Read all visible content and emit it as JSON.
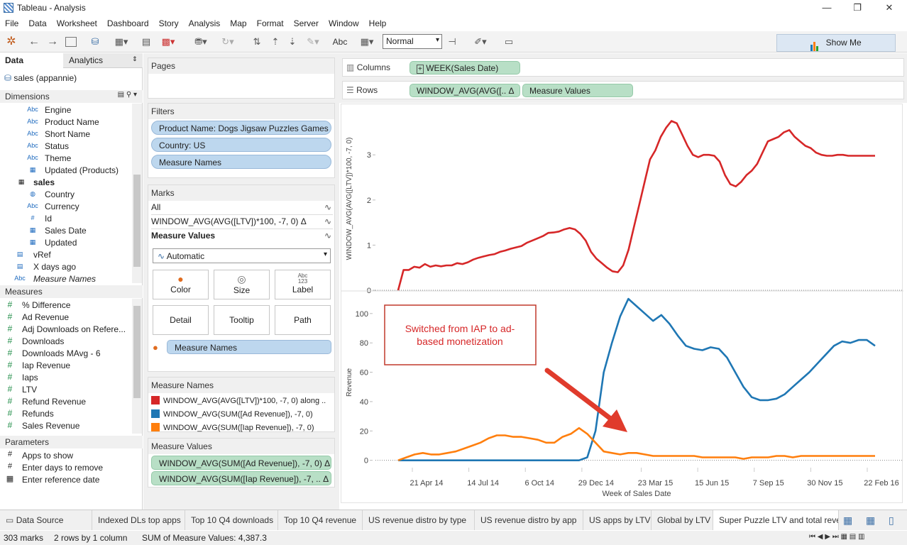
{
  "window": {
    "title": "Tableau - Analysis",
    "minimize": "—",
    "restore": "❐",
    "close": "✕"
  },
  "menu": [
    "File",
    "Data",
    "Worksheet",
    "Dashboard",
    "Story",
    "Analysis",
    "Map",
    "Format",
    "Server",
    "Window",
    "Help"
  ],
  "toolbar": {
    "view_size": "Normal",
    "abc_label": "Abc",
    "show_me": "Show Me"
  },
  "data_pane": {
    "tab_data": "Data",
    "tab_analytics": "Analytics",
    "datasource": "sales (appannie)",
    "dimensions_header": "Dimensions",
    "dimensions": [
      {
        "icon": "Abc",
        "label": "Engine",
        "indent": 1
      },
      {
        "icon": "Abc",
        "label": "Product Name",
        "indent": 1
      },
      {
        "icon": "Abc",
        "label": "Short Name",
        "indent": 1
      },
      {
        "icon": "Abc",
        "label": "Status",
        "indent": 1
      },
      {
        "icon": "Abc",
        "label": "Theme",
        "indent": 1
      },
      {
        "icon": "cal",
        "label": "Updated (Products)",
        "indent": 1
      },
      {
        "icon": "tbl",
        "label": "sales",
        "indent": 0
      },
      {
        "icon": "globe",
        "label": "Country",
        "indent": 1
      },
      {
        "icon": "Abc",
        "label": "Currency",
        "indent": 1
      },
      {
        "icon": "#",
        "label": "Id",
        "indent": 1
      },
      {
        "icon": "cal",
        "label": "Sales Date",
        "indent": 1
      },
      {
        "icon": "cal",
        "label": "Updated",
        "indent": 1
      },
      {
        "icon": "calc",
        "label": "vRef",
        "indent": 0
      },
      {
        "icon": "calc",
        "label": "X days ago",
        "indent": 0
      },
      {
        "icon": "Abc",
        "label": "Measure Names",
        "indent": 0
      }
    ],
    "measures_header": "Measures",
    "measures": [
      "% Difference",
      "Ad Revenue",
      "Adj Downloads on Refere...",
      "Downloads",
      "Downloads MAvg - 6",
      "Iap Revenue",
      "Iaps",
      "LTV",
      "Refund Revenue",
      "Refunds",
      "Sales Revenue"
    ],
    "parameters_header": "Parameters",
    "parameters": [
      {
        "icon": "#",
        "label": "Apps to show"
      },
      {
        "icon": "#",
        "label": "Enter days to remove"
      },
      {
        "icon": "cal",
        "label": "Enter reference date"
      }
    ]
  },
  "cards": {
    "pages_header": "Pages",
    "filters_header": "Filters",
    "filters": [
      "Product Name: Dogs Jigsaw Puzzles Games ..",
      "Country: US",
      "Measure Names"
    ],
    "marks_header": "Marks",
    "marks_rows": [
      "All",
      "WINDOW_AVG(AVG([LTV])*100, -7, 0) Δ",
      "Measure Values"
    ],
    "mark_type": "Automatic",
    "mark_buttons": [
      "Color",
      "Size",
      "Label",
      "Detail",
      "Tooltip",
      "Path"
    ],
    "label_icon_text": "Abc\n123",
    "color_pill": "Measure Names",
    "legend_header": "Measure Names",
    "legend": [
      {
        "label": "WINDOW_AVG(AVG([LTV])*100, -7, 0) along ..",
        "color": "#d62728"
      },
      {
        "label": "WINDOW_AVG(SUM([Ad Revenue]), -7, 0)",
        "color": "#1f77b4"
      },
      {
        "label": "WINDOW_AVG(SUM([Iap Revenue]), -7, 0)",
        "color": "#ff7f0e"
      }
    ],
    "mv_header": "Measure Values",
    "mv_pills": [
      "WINDOW_AVG(SUM([Ad Revenue]), -7, 0) Δ",
      "WINDOW_AVG(SUM([Iap Revenue]), -7, .. Δ"
    ]
  },
  "shelves": {
    "columns_label": "Columns",
    "rows_label": "Rows",
    "columns_pill": "WEEK(Sales Date)",
    "rows_pills": [
      "WINDOW_AVG(AVG([.. Δ",
      "Measure Values"
    ]
  },
  "chart_data": [
    {
      "type": "line",
      "ylabel": "WINDOW_AVG(AVG([LTV])*100, -7, 0)",
      "ylim": [
        0,
        3.9
      ],
      "yticks": [
        0,
        1,
        2,
        3
      ],
      "series": [
        {
          "color": "#d62728",
          "x": [
            0,
            2,
            4,
            6,
            8,
            10,
            12,
            14,
            16,
            18,
            20,
            22,
            24,
            26,
            28,
            30,
            32,
            34,
            36,
            38,
            40,
            42,
            44,
            46,
            48,
            50,
            52,
            54,
            56,
            58,
            60,
            62,
            64,
            66,
            68,
            70,
            72,
            74,
            76,
            78,
            80,
            82,
            84,
            86,
            88,
            90,
            92,
            94,
            96,
            98,
            100,
            102,
            104,
            106,
            108,
            110,
            112,
            114,
            116,
            118,
            120,
            122,
            124,
            126,
            128,
            130,
            132,
            134,
            136,
            138,
            140,
            142,
            144,
            146,
            148,
            150,
            152,
            154,
            156,
            158,
            160,
            162,
            164,
            166,
            168,
            170,
            172,
            174,
            176,
            178
          ],
          "values": [
            0,
            0.45,
            0.45,
            0.52,
            0.5,
            0.58,
            0.52,
            0.55,
            0.53,
            0.55,
            0.55,
            0.6,
            0.58,
            0.62,
            0.68,
            0.72,
            0.75,
            0.78,
            0.8,
            0.85,
            0.88,
            0.92,
            0.95,
            0.98,
            1.05,
            1.1,
            1.15,
            1.2,
            1.27,
            1.28,
            1.3,
            1.35,
            1.38,
            1.35,
            1.25,
            1.1,
            0.85,
            0.7,
            0.6,
            0.5,
            0.42,
            0.4,
            0.55,
            0.9,
            1.4,
            1.9,
            2.4,
            2.9,
            3.1,
            3.4,
            3.6,
            3.75,
            3.7,
            3.45,
            3.2,
            3.0,
            2.95,
            3.0,
            3.0,
            2.98,
            2.85,
            2.55,
            2.35,
            2.3,
            2.4,
            2.55,
            2.65,
            2.8,
            3.05,
            3.3,
            3.35,
            3.4,
            3.5,
            3.55,
            3.4,
            3.3,
            3.2,
            3.15,
            3.05,
            3.0,
            2.98,
            2.98,
            3.0,
            3.0,
            2.98,
            2.98,
            2.98,
            2.98,
            2.98,
            2.98
          ]
        }
      ]
    },
    {
      "type": "line",
      "ylabel": "Revenue",
      "xlabel": "Week of Sales Date",
      "ylim": [
        -5,
        112
      ],
      "yticks": [
        0,
        20,
        40,
        60,
        80,
        100
      ],
      "xtick_labels": [
        "21 Apr 14",
        "14 Jul 14",
        "6 Oct 14",
        "29 Dec 14",
        "23 Mar 15",
        "15 Jun 15",
        "7 Sep 15",
        "30 Nov 15",
        "22 Feb 16"
      ],
      "annotation": "Switched from IAP to ad-based monetization",
      "series": [
        {
          "color": "#1f77b4",
          "x": [
            0,
            20,
            40,
            60,
            80,
            100,
            120,
            140,
            150,
            156,
            160,
            164,
            168,
            172,
            176,
            180,
            184,
            188,
            192,
            196,
            200,
            204,
            208,
            212,
            216,
            220,
            224,
            228,
            232,
            236,
            240,
            244,
            248,
            252,
            256,
            260,
            264,
            268,
            272,
            276,
            280,
            284,
            288,
            292,
            296,
            300,
            304,
            308,
            312,
            316,
            320,
            324,
            328,
            332,
            336,
            340,
            344,
            348,
            352
          ],
          "values": [
            0,
            0,
            0,
            0,
            0,
            0,
            0,
            0,
            0,
            0,
            0,
            0,
            0,
            0,
            0,
            0,
            0,
            0,
            0,
            0,
            0,
            0,
            0,
            2,
            20,
            60,
            80,
            98,
            110,
            105,
            100,
            95,
            99,
            93,
            85,
            78,
            76,
            75,
            77,
            76,
            70,
            60,
            50,
            43,
            41,
            41,
            42,
            45,
            50,
            55,
            60,
            66,
            72,
            78,
            81,
            80,
            82,
            82,
            78
          ],
          "x_note": "weekly index"
        },
        {
          "color": "#ff7f0e",
          "values": [
            0,
            2,
            4,
            5,
            4,
            4,
            5,
            6,
            8,
            10,
            12,
            15,
            17,
            17,
            16,
            16,
            15,
            14,
            12,
            12,
            16,
            18,
            22,
            18,
            12,
            6,
            5,
            4,
            5,
            5,
            4,
            3,
            3,
            3,
            3,
            3,
            3,
            2,
            2,
            2,
            2,
            2,
            1,
            2,
            2,
            2,
            3,
            3,
            2,
            3,
            3,
            3,
            3,
            3,
            3,
            3,
            3,
            3,
            3
          ]
        }
      ]
    }
  ],
  "sheet_tabs": [
    "Data Source",
    "Indexed DLs top apps",
    "Top 10 Q4 downloads",
    "Top 10 Q4 revenue",
    "US revenue distro by type",
    "US revenue distro by app",
    "US apps by LTV",
    "Global by LTV",
    "Super Puzzle LTV and total rever"
  ],
  "status": {
    "marks": "303 marks",
    "rows_cols": "2 rows by 1 column",
    "sum": "SUM of Measure Values: 4,387.3"
  }
}
